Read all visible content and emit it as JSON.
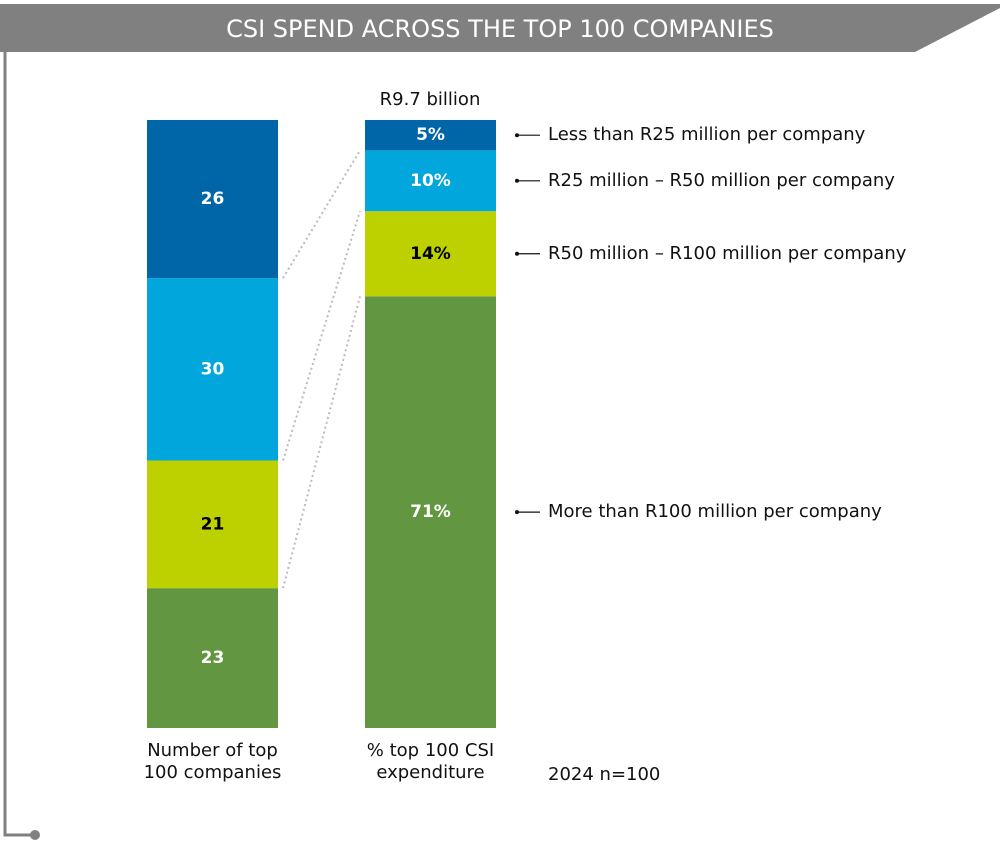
{
  "chart_data": {
    "type": "bar",
    "title": "CSI SPEND ACROSS THE TOP 100 COMPANIES",
    "total_label": "R9.7 billion",
    "note": "2024 n=100",
    "categories": [
      "Number of top 100 companies",
      "% top 100 CSI expenditure"
    ],
    "ylim": [
      0,
      100
    ],
    "series": [
      {
        "name": "More than R100 million per company",
        "color": "#639641",
        "label_color": "#ffffff",
        "values": [
          23,
          71
        ],
        "value_labels": [
          "23",
          "71%"
        ]
      },
      {
        "name": "R50 million – R100 million per company",
        "color": "#bdd000",
        "label_color": "#000000",
        "values": [
          21,
          14
        ],
        "value_labels": [
          "21",
          "14%"
        ]
      },
      {
        "name": "R25 million – R50 million per company",
        "color": "#00a6dc",
        "label_color": "#ffffff",
        "values": [
          30,
          10
        ],
        "value_labels": [
          "30",
          "10%"
        ]
      },
      {
        "name": "Less than R25 million per company",
        "color": "#0066a8",
        "label_color": "#ffffff",
        "values": [
          26,
          5
        ],
        "value_labels": [
          "26",
          "5%"
        ]
      }
    ]
  }
}
